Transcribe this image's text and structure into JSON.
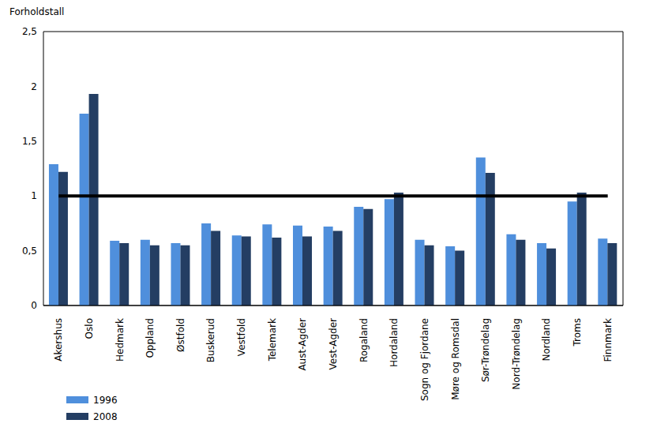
{
  "chart_data": {
    "type": "bar",
    "y_label": "Forholdstall",
    "categories": [
      "Akershus",
      "Oslo",
      "Hedmark",
      "Oppland",
      "Østfold",
      "Buskerud",
      "Vestfold",
      "Telemark",
      "Aust-Agder",
      "Vest-Agder",
      "Rogaland",
      "Hordaland",
      "Sogn og Fjordane",
      "Møre og Romsdal",
      "Sør-Trøndelag",
      "Nord-Trøndelag",
      "Nordland",
      "Troms",
      "Finnmark"
    ],
    "series": [
      {
        "name": "1996",
        "color": "#4f8fdc",
        "values": [
          1.29,
          1.75,
          0.59,
          0.6,
          0.57,
          0.75,
          0.64,
          0.74,
          0.73,
          0.72,
          0.9,
          0.97,
          0.6,
          0.54,
          1.35,
          0.65,
          0.57,
          0.95,
          0.61
        ]
      },
      {
        "name": "2008",
        "color": "#243e63",
        "values": [
          1.22,
          1.93,
          0.57,
          0.55,
          0.55,
          0.68,
          0.63,
          0.62,
          0.63,
          0.68,
          0.88,
          1.03,
          0.55,
          0.5,
          1.21,
          0.6,
          0.52,
          1.03,
          0.57
        ]
      }
    ],
    "reference_line": 1,
    "ylim": [
      0,
      2.5
    ],
    "yticks": [
      0,
      {
        "value": 0.5,
        "label": "0,5"
      },
      1,
      {
        "value": 1.5,
        "label": "1,5"
      },
      2,
      {
        "value": 2.5,
        "label": "2,5"
      }
    ],
    "grid": true,
    "legend": "bottom-left"
  }
}
